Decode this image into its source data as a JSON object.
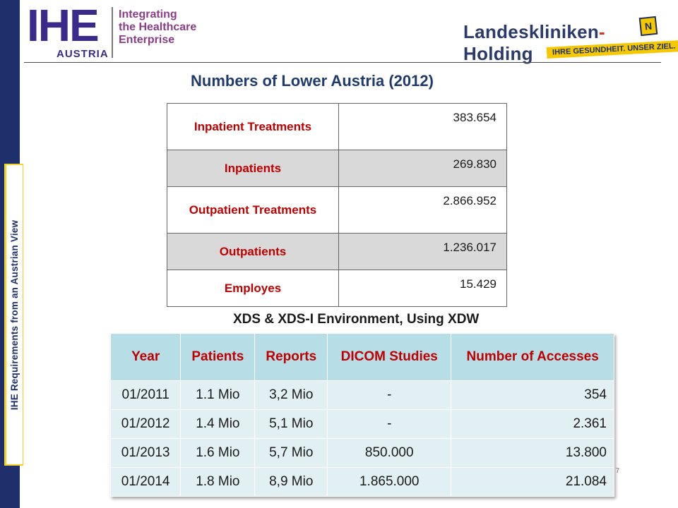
{
  "sidebar": {
    "vertical_text": "IHE Requirements from an Austrian View"
  },
  "header": {
    "ihe_logo": {
      "letters": "IHE",
      "country": "AUSTRIA",
      "tagline": [
        "Integrating",
        "the Healthcare",
        "Enterprise"
      ]
    },
    "partner_logo": {
      "name_part1": "Landeskliniken",
      "hyphen": "-",
      "name_part2": "Holding",
      "badge": "N",
      "slogan": "IHRE GESUNDHEIT. UNSER ZIEL."
    }
  },
  "title": "Numbers of Lower Austria (2012)",
  "stats": [
    {
      "label": "Inpatient Treatments",
      "value": "383.654",
      "shade": "white"
    },
    {
      "label": "Inpatients",
      "value": "269.830",
      "shade": "gray"
    },
    {
      "label": "Outpatient Treatments",
      "value": "2.866.952",
      "shade": "white"
    },
    {
      "label": "Outpatients",
      "value": "1.236.017",
      "shade": "gray"
    },
    {
      "label": "Employes",
      "value": "15.429",
      "shade": "white"
    }
  ],
  "xds": {
    "title": "XDS & XDS-I Environment, Using XDW",
    "headers": [
      "Year",
      "Patients",
      "Reports",
      "DICOM Studies",
      "Number of Accesses"
    ],
    "rows": [
      [
        "01/2011",
        "1.1 Mio",
        "3,2 Mio",
        "-",
        "354"
      ],
      [
        "01/2012",
        "1.4 Mio",
        "5,1 Mio",
        "-",
        "2.361"
      ],
      [
        "01/2013",
        "1.6 Mio",
        "5,7 Mio",
        "850.000",
        "13.800"
      ],
      [
        "01/2014",
        "1.8 Mio",
        "8,9 Mio",
        "1.865.000",
        "21.084"
      ]
    ]
  },
  "page_number": "7",
  "colors": {
    "navy": "#1f2f6b",
    "yellow": "#f5d224",
    "red_label": "#c00000",
    "header_cyan": "#b7dde6",
    "row_cyan": "#e3f0f3",
    "gray_row": "#d9d9d9"
  }
}
